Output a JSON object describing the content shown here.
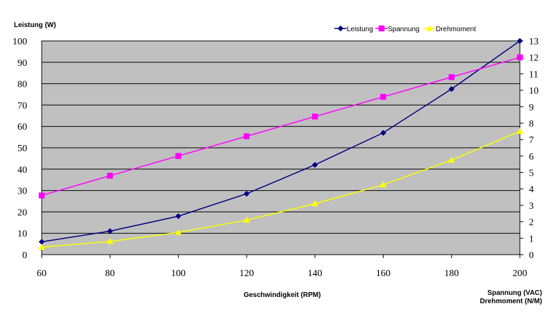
{
  "chart_data": {
    "type": "line",
    "title": "",
    "xlabel": "Geschwindigkeit (RPM)",
    "ylabel_left": "Leistung (W)",
    "ylabel_right": [
      "Spannung (VAC)",
      "Drehmoment (N/M)"
    ],
    "x": [
      60,
      80,
      100,
      120,
      140,
      160,
      180,
      200
    ],
    "x_ticks": [
      "60",
      "80",
      "100",
      "120",
      "140",
      "160",
      "180",
      "200"
    ],
    "xlim": [
      60,
      200
    ],
    "ylim_left": [
      0,
      100
    ],
    "ylim_right": [
      0,
      13
    ],
    "y_ticks_left": [
      "0",
      "10",
      "20",
      "30",
      "40",
      "50",
      "60",
      "70",
      "80",
      "90",
      "100"
    ],
    "y_ticks_right": [
      "0",
      "1",
      "2",
      "3",
      "4",
      "5",
      "6",
      "7",
      "8",
      "9",
      "10",
      "11",
      "12",
      "13"
    ],
    "grid": "horizontal",
    "legend_position": "top-right",
    "plot_background": "#c0c0c0",
    "series": [
      {
        "name": "Leistung",
        "axis": "left",
        "marker": "diamond",
        "color": "#000080",
        "values": [
          6,
          11,
          18,
          28.5,
          42,
          57,
          77.5,
          100
        ]
      },
      {
        "name": "Spannung",
        "axis": "right",
        "marker": "square",
        "color": "#ff00ff",
        "values": [
          3.6,
          4.8,
          6.0,
          7.2,
          8.4,
          9.6,
          10.8,
          12.0
        ]
      },
      {
        "name": "Drehmoment",
        "axis": "right",
        "marker": "triangle",
        "color": "#ffff00",
        "values": [
          0.45,
          0.8,
          1.35,
          2.1,
          3.1,
          4.25,
          5.75,
          7.5
        ]
      }
    ]
  }
}
